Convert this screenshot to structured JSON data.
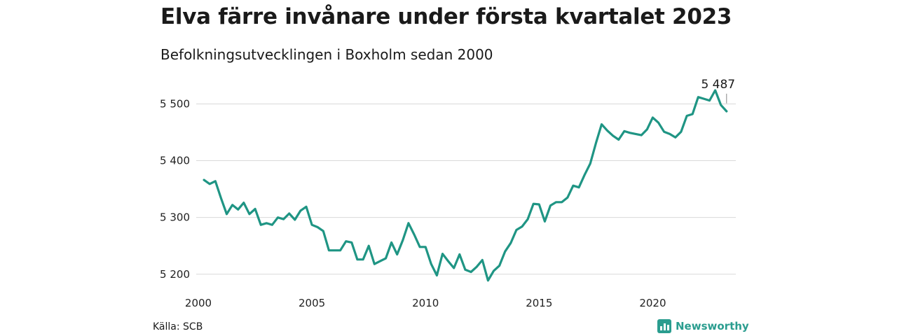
{
  "title": "Elva färre invånare under första kvartalet 2023",
  "subtitle": "Befolkningsutvecklingen i Boxholm sedan 2000",
  "source": "Källa: SCB",
  "brand": {
    "name": "Newsworthy",
    "icon": "newsworthy-logo-icon",
    "color": "#2a9d8f"
  },
  "chart_data": {
    "type": "line",
    "title": "Elva färre invånare under första kvartalet 2023",
    "subtitle": "Befolkningsutvecklingen i Boxholm sedan 2000",
    "xlabel": "",
    "ylabel": "",
    "xlim": [
      2000,
      2023.75
    ],
    "ylim": [
      5180,
      5540
    ],
    "grid": true,
    "line_color": "#1f9584",
    "x_ticks": [
      2000,
      2005,
      2010,
      2015,
      2020
    ],
    "x_tick_labels": [
      "2000",
      "2005",
      "2010",
      "2015",
      "2020"
    ],
    "y_ticks": [
      5200,
      5300,
      5400,
      5500
    ],
    "y_tick_labels": [
      "5 200",
      "5 300",
      "5 400",
      "5 500"
    ],
    "last_value_label": "5 487",
    "series": [
      {
        "name": "",
        "x": [
          2000.25,
          2000.5,
          2000.75,
          2001,
          2001.25,
          2001.5,
          2001.75,
          2002,
          2002.25,
          2002.5,
          2002.75,
          2003,
          2003.25,
          2003.5,
          2003.75,
          2004,
          2004.25,
          2004.5,
          2004.75,
          2005,
          2005.25,
          2005.5,
          2005.75,
          2006,
          2006.25,
          2006.5,
          2006.75,
          2007,
          2007.25,
          2007.5,
          2007.75,
          2008,
          2008.25,
          2008.5,
          2008.75,
          2009,
          2009.25,
          2009.5,
          2009.75,
          2010,
          2010.25,
          2010.5,
          2010.75,
          2011,
          2011.25,
          2011.5,
          2011.75,
          2012,
          2012.25,
          2012.5,
          2012.75,
          2013,
          2013.25,
          2013.5,
          2013.75,
          2014,
          2014.25,
          2014.5,
          2014.75,
          2015,
          2015.25,
          2015.5,
          2015.75,
          2016,
          2016.25,
          2016.5,
          2016.75,
          2017,
          2017.25,
          2017.5,
          2017.75,
          2018,
          2018.25,
          2018.5,
          2018.75,
          2019,
          2019.25,
          2019.5,
          2019.75,
          2020,
          2020.25,
          2020.5,
          2020.75,
          2021,
          2021.25,
          2021.5,
          2021.75,
          2022,
          2022.25,
          2022.5,
          2022.75,
          2023,
          2023.25
        ],
        "values": [
          5366,
          5359,
          5364,
          5334,
          5306,
          5322,
          5314,
          5326,
          5306,
          5315,
          5287,
          5290,
          5287,
          5300,
          5297,
          5307,
          5296,
          5312,
          5319,
          5287,
          5283,
          5276,
          5242,
          5242,
          5242,
          5258,
          5256,
          5226,
          5226,
          5250,
          5218,
          5223,
          5228,
          5256,
          5235,
          5260,
          5290,
          5270,
          5248,
          5248,
          5218,
          5198,
          5236,
          5223,
          5211,
          5235,
          5208,
          5204,
          5213,
          5225,
          5189,
          5206,
          5215,
          5240,
          5255,
          5278,
          5284,
          5297,
          5324,
          5323,
          5293,
          5321,
          5327,
          5327,
          5335,
          5356,
          5353,
          5375,
          5395,
          5431,
          5464,
          5453,
          5444,
          5437,
          5452,
          5449,
          5447,
          5445,
          5455,
          5476,
          5467,
          5451,
          5447,
          5441,
          5451,
          5479,
          5482,
          5512,
          5509,
          5506,
          5524,
          5498,
          5487
        ]
      }
    ]
  }
}
